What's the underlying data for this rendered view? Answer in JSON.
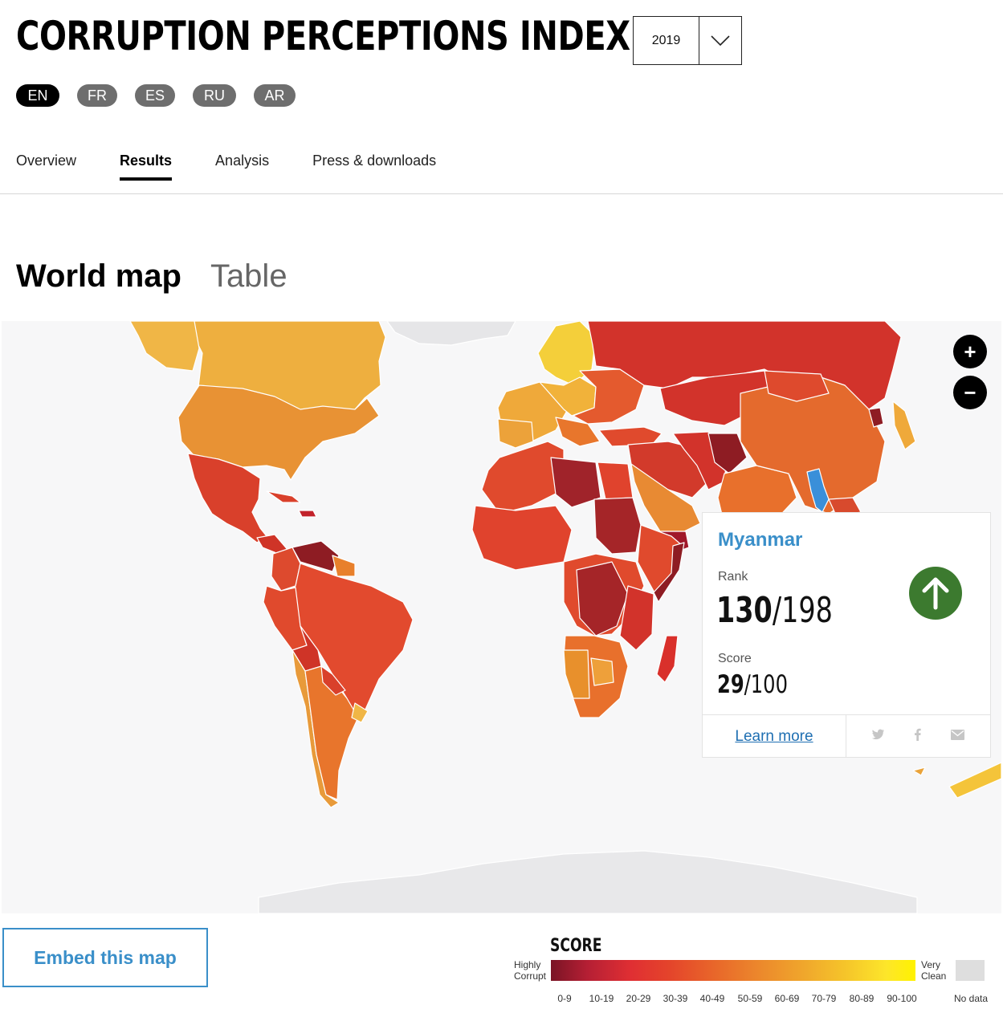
{
  "header": {
    "title": "CORRUPTION PERCEPTIONS INDEX",
    "year": "2019"
  },
  "languages": [
    "EN",
    "FR",
    "ES",
    "RU",
    "AR"
  ],
  "nav": {
    "tabs": [
      "Overview",
      "Results",
      "Analysis",
      "Press & downloads"
    ],
    "active": "Results"
  },
  "views": {
    "map_label": "World map",
    "table_label": "Table"
  },
  "map": {
    "zoom_in": "+",
    "zoom_out": "−"
  },
  "popup": {
    "country": "Myanmar",
    "rank_label": "Rank",
    "rank": "130",
    "rank_total": "/198",
    "score_label": "Score",
    "score": "29",
    "score_total": "/100",
    "trend": "up",
    "learn_more": "Learn more"
  },
  "embed": {
    "label": "Embed this map"
  },
  "legend": {
    "title": "SCORE",
    "low_label_1": "Highly",
    "low_label_2": "Corrupt",
    "high_label_1": "Very",
    "high_label_2": "Clean",
    "ranges": [
      "0-9",
      "10-19",
      "20-29",
      "30-39",
      "40-49",
      "50-59",
      "60-69",
      "70-79",
      "80-89",
      "90-100"
    ],
    "no_data": "No data"
  },
  "colors": {
    "accent_blue": "#3a8fc9",
    "trend_green": "#3c7a2f",
    "highlight_country": "#3a8fd9"
  }
}
